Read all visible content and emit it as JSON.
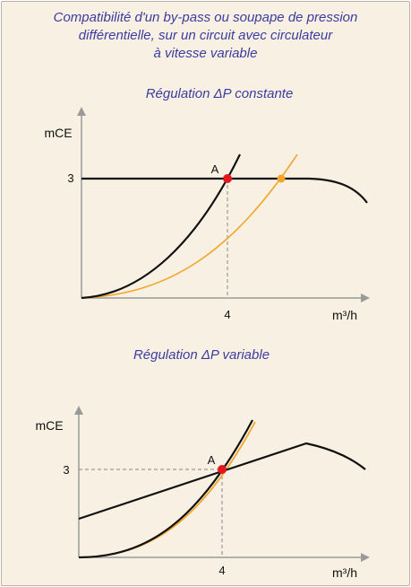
{
  "title": {
    "line1": "Compatibilité d'un by-pass ou soupape de pression",
    "line2": "différentielle, sur un circuit avec circulateur",
    "line3": "à vitesse variable"
  },
  "panel_top": {
    "subtitle": "Régulation ΔP constante",
    "y_label": "mCE",
    "x_label": "m³/h",
    "y_tick": "3",
    "x_tick": "4",
    "point_label": "A"
  },
  "panel_bottom": {
    "subtitle": "Régulation ΔP variable",
    "y_label": "mCE",
    "x_label": "m³/h",
    "y_tick": "3",
    "x_tick": "4",
    "point_label": "A"
  },
  "colors": {
    "background": "#f8f1e3",
    "axis": "#9a9a9a",
    "pump_curve": "#111111",
    "system_curve": "#111111",
    "bypass_curve": "#f2a52a",
    "point_red": "#e3161b",
    "point_orange": "#f2a52a",
    "title_text": "#3c3ca0"
  }
}
